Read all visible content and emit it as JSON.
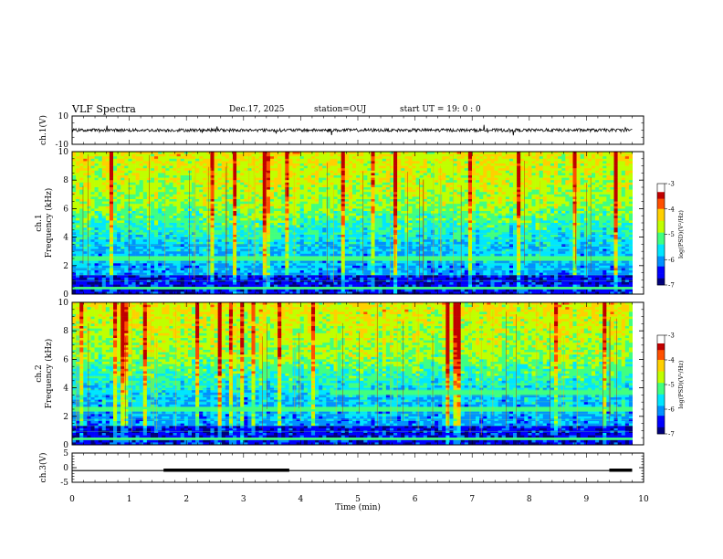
{
  "header": {
    "title": "VLF Spectra",
    "date": "Dec.17, 2025",
    "station": "station=OUJ",
    "start": "start  UT =   19: 0  : 0"
  },
  "chart_data": [
    {
      "type": "line",
      "panel": "ch1-waveform",
      "ylabel": "ch.1(V)",
      "ylim": [
        -10,
        10
      ],
      "yticks": [
        10,
        -10
      ],
      "xlim": [
        0,
        10
      ],
      "baseline": 0,
      "style": "noisy trace near 0 V with sporadic spikes"
    },
    {
      "type": "heatmap",
      "panel": "ch1-spectrogram",
      "ylabel_top": "ch.1",
      "ylabel": "Frequency (kHz)",
      "ylim": [
        0,
        10
      ],
      "yticks": [
        0,
        2,
        4,
        6,
        8,
        10
      ],
      "xlim": [
        0,
        10
      ],
      "colorbar": {
        "label": "log(PSD)(V²/Hz)",
        "range": [
          -7,
          -3
        ],
        "ticks": [
          -3,
          -4,
          -5,
          -6,
          -7
        ]
      },
      "features": {
        "low_band_kHz": [
          0,
          1.2
        ],
        "harmonic_lines": true,
        "impulsive_vertical_bursts": true
      }
    },
    {
      "type": "heatmap",
      "panel": "ch2-spectrogram",
      "ylabel_top": "ch.2",
      "ylabel": "Frequency (kHz)",
      "ylim": [
        0,
        10
      ],
      "yticks": [
        0,
        2,
        4,
        6,
        8,
        10
      ],
      "xlim": [
        0,
        10
      ],
      "colorbar": {
        "label": "log(PSD)(V²/Hz)",
        "range": [
          -7,
          -3
        ],
        "ticks": [
          -3,
          -4,
          -5,
          -6,
          -7
        ]
      },
      "features": {
        "narrowband_line_kHz": 3.6,
        "narrowband_start_min": 4.6
      }
    },
    {
      "type": "line",
      "panel": "ch3-digital",
      "ylabel": "ch.3(V)",
      "ylim": [
        -5,
        5
      ],
      "yticks": [
        5,
        0,
        -5
      ],
      "xlim": [
        0,
        10
      ],
      "level_V": -1,
      "thick_segments_min": [
        [
          1.6,
          3.8
        ],
        [
          9.4,
          9.8
        ]
      ]
    }
  ],
  "xaxis": {
    "label": "Time  (min)",
    "ticks": [
      "0",
      "1",
      "2",
      "3",
      "4",
      "5",
      "6",
      "7",
      "8",
      "9",
      "10"
    ]
  },
  "colors": {
    "colormap": [
      "#00007a",
      "#0000ff",
      "#0090ff",
      "#00e6ff",
      "#40ff80",
      "#c0ff00",
      "#ffd000",
      "#ff5000",
      "#c00000"
    ]
  }
}
